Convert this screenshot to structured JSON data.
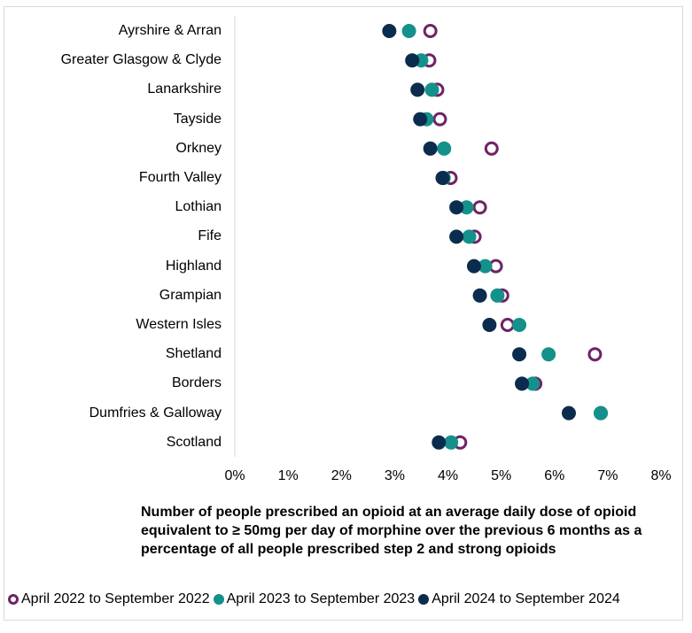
{
  "chart_data": {
    "type": "scatter",
    "subtype": "dot-plot",
    "orientation": "horizontal",
    "categories": [
      "Ayrshire & Arran",
      "Greater Glasgow & Clyde",
      "Lanarkshire",
      "Tayside",
      "Orkney",
      "Fourth Valley",
      "Lothian",
      "Fife",
      "Highland",
      "Grampian",
      "Western Isles",
      "Shetland",
      "Borders",
      "Dumfries & Galloway",
      "Scotland"
    ],
    "series": [
      {
        "name": "April 2022 to September 2022",
        "color": "#6e2466",
        "marker": "ring",
        "values": [
          3.67,
          3.65,
          3.8,
          3.85,
          4.82,
          4.05,
          4.6,
          4.5,
          4.9,
          5.02,
          5.12,
          6.76,
          5.64,
          6.87,
          4.23
        ]
      },
      {
        "name": "April 2023 to September 2023",
        "color": "#14918a",
        "marker": "dot",
        "values": [
          3.27,
          3.5,
          3.7,
          3.6,
          3.93,
          3.92,
          4.35,
          4.4,
          4.7,
          4.93,
          5.34,
          5.89,
          5.59,
          6.87,
          4.06
        ]
      },
      {
        "name": "April 2024 to September 2024",
        "color": "#0b2c4e",
        "marker": "dot",
        "values": [
          2.9,
          3.33,
          3.43,
          3.48,
          3.67,
          3.9,
          4.16,
          4.16,
          4.49,
          4.6,
          4.78,
          5.34,
          5.39,
          6.27,
          3.83
        ]
      }
    ],
    "xlim": [
      0,
      8
    ],
    "xticks": [
      "0%",
      "1%",
      "2%",
      "3%",
      "4%",
      "5%",
      "6%",
      "7%",
      "8%"
    ],
    "xlabel": "Number of people prescribed an opioid at an average daily dose of opioid equivalent to ≥ 50mg per day of morphine over the previous 6 months as a percentage of all people prescribed step 2 and strong opioids",
    "ylabel": "",
    "grid": false,
    "legend_position": "bottom"
  }
}
